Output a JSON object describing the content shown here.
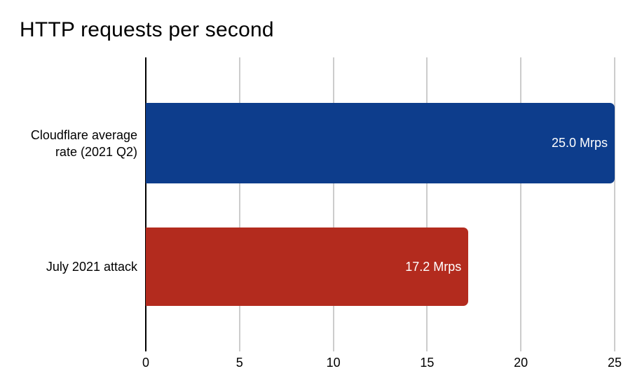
{
  "chart_data": {
    "type": "bar",
    "orientation": "horizontal",
    "title": "HTTP requests per second",
    "categories": [
      "Cloudflare average rate (2021 Q2)",
      "July 2021 attack"
    ],
    "values": [
      25.0,
      17.2
    ],
    "value_labels": [
      "25.0 Mrps",
      "17.2 Mrps"
    ],
    "unit": "Mrps",
    "xlim": [
      0,
      25
    ],
    "x_ticks": [
      0,
      5,
      10,
      15,
      20,
      25
    ],
    "grid": true,
    "legend": "none",
    "colors": {
      "bars": [
        "#0d3d8c",
        "#b32b1e"
      ],
      "gridline": "#cccccc",
      "axis_line": "#000000",
      "value_label": "#ffffff",
      "text": "#000000",
      "background": "#ffffff"
    }
  }
}
